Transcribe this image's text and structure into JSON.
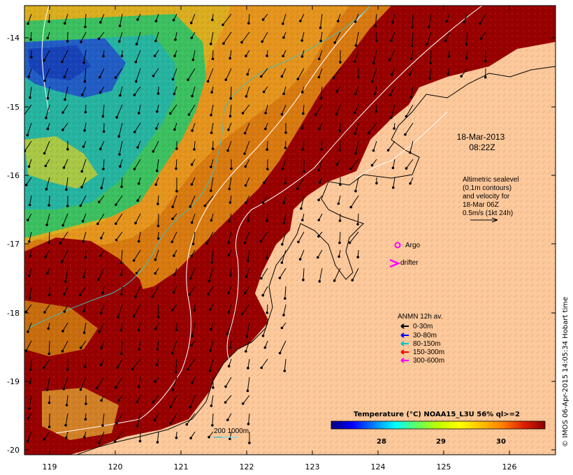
{
  "map": {
    "datetime": [
      "18-Mar-2013",
      "08:22Z"
    ],
    "sealevel_note": [
      "Altimetric sealevel",
      "(0.1m contours)",
      "and velocity for",
      "18-Mar 06Z",
      "0.5m/s (1kt 24h)"
    ],
    "argo_label": "Argo",
    "drifter_label": "drifter",
    "anmn_title": "ANMN 12h av.",
    "anmn_legend": [
      {
        "label": "0-30m",
        "color": "#000000"
      },
      {
        "label": "30-80m",
        "color": "#0000ff"
      },
      {
        "label": "80-150m",
        "color": "#00c8c8"
      },
      {
        "label": "150-300m",
        "color": "#ff0000"
      },
      {
        "label": "300-600m",
        "color": "#ff00ff"
      }
    ],
    "bathy_label": "200  1000m",
    "colorbar": {
      "title": "Temperature (°C) NOAA15_L3U 56% ql>=2",
      "ticks": [
        "28",
        "29",
        "30"
      ],
      "colors": [
        "#00007f",
        "#0000ff",
        "#0080ff",
        "#00ffff",
        "#40ff80",
        "#80ff40",
        "#ffff00",
        "#ffc000",
        "#ff8000",
        "#ff4000",
        "#d00000",
        "#8b0000"
      ]
    },
    "credit": "© IMOS 06-Apr-2015 14:05:34 Hobart time",
    "x_axis": {
      "ticks": [
        "119",
        "120",
        "121",
        "122",
        "123",
        "124",
        "125",
        "126"
      ]
    },
    "y_axis": {
      "ticks": [
        "-14",
        "-15",
        "-16",
        "-17",
        "-18",
        "-19",
        "-20"
      ]
    },
    "colors": {
      "land": "#fdc89a",
      "warm_water": "#990000",
      "contour": "#ffffff",
      "isobath_200": "#40c0c0"
    }
  }
}
